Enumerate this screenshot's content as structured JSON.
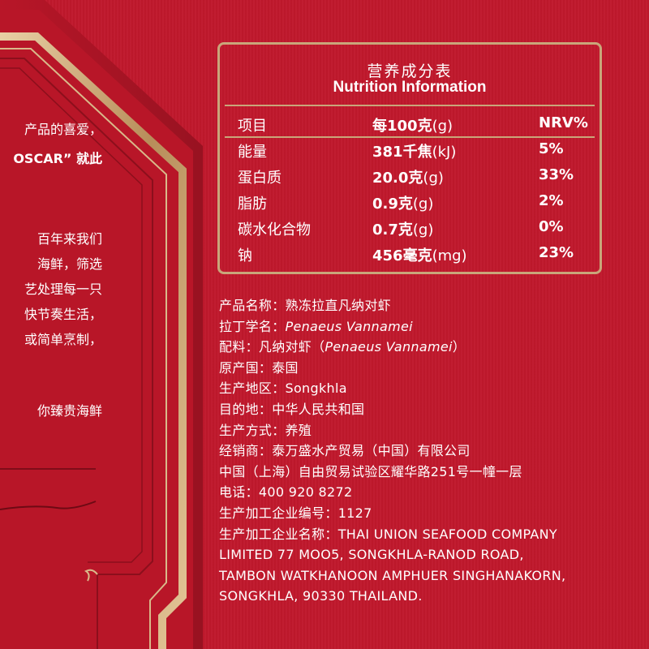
{
  "left_panel": {
    "lines": [
      "产品的喜爱，",
      "OSCAR” 就此",
      "百年来我们",
      "海鲜，筛选",
      "艺处理每一只",
      "快节奏生活，",
      "或简单烹制，",
      "你臻贵海鲜"
    ]
  },
  "nutrition": {
    "title_cn": "营养成分表",
    "title_en": "Nutrition Information",
    "header": {
      "item": "项目",
      "per_bold": "每100克",
      "per_unit": "(g)",
      "nrv": "NRV%"
    },
    "rows": [
      {
        "item": "能量",
        "value": "381千焦",
        "unit": "(kJ)",
        "nrv": "5%"
      },
      {
        "item": "蛋白质",
        "value": "20.0克",
        "unit": "(g)",
        "nrv": "33%"
      },
      {
        "item": "脂肪",
        "value": "0.9克",
        "unit": "(g)",
        "nrv": "2%"
      },
      {
        "item": "碳水化合物",
        "value": "0.7克",
        "unit": "(g)",
        "nrv": "0%"
      },
      {
        "item": "钠",
        "value": "456毫克",
        "unit": "(mg)",
        "nrv": "23%"
      }
    ]
  },
  "info": {
    "product_name_label": "产品名称：",
    "product_name": "熟冻拉直凡纳对虾",
    "latin_label": "拉丁学名：",
    "latin": "Penaeus Vannamei",
    "ingredients_label": "配料：",
    "ingredients_pre": "凡纳对虾（",
    "ingredients_latin": "Penaeus Vannamei",
    "ingredients_post": "）",
    "origin_label": "原产国：",
    "origin": "泰国",
    "region_label": "生产地区：",
    "region": "Songkhla",
    "destination_label": "目的地：",
    "destination": "中华人民共和国",
    "method_label": "生产方式：",
    "method": "养殖",
    "distributor_label": "经销商：",
    "distributor": "泰万盛水产贸易（中国）有限公司",
    "address": "中国（上海）自由贸易试验区耀华路251号一幢一层",
    "phone_label": "电话：",
    "phone": "400 920 8272",
    "plant_no_label": "生产加工企业编号：",
    "plant_no": "1127",
    "plant_name_label": "生产加工企业名称：",
    "plant_name_1": "THAI UNION SEAFOOD COMPANY",
    "plant_name_2": "LIMITED 77 MOO5, SONGKHLA-RANOD ROAD,",
    "plant_name_3": "TAMBON WATKHANOON AMPHUER SINGHANAKORN,",
    "plant_name_4": "SONGKHLA, 90330 THAILAND."
  },
  "colors": {
    "background": "#c0182c",
    "gold": "#c9a67a",
    "panel": "#b01526",
    "text": "#ffffff"
  }
}
